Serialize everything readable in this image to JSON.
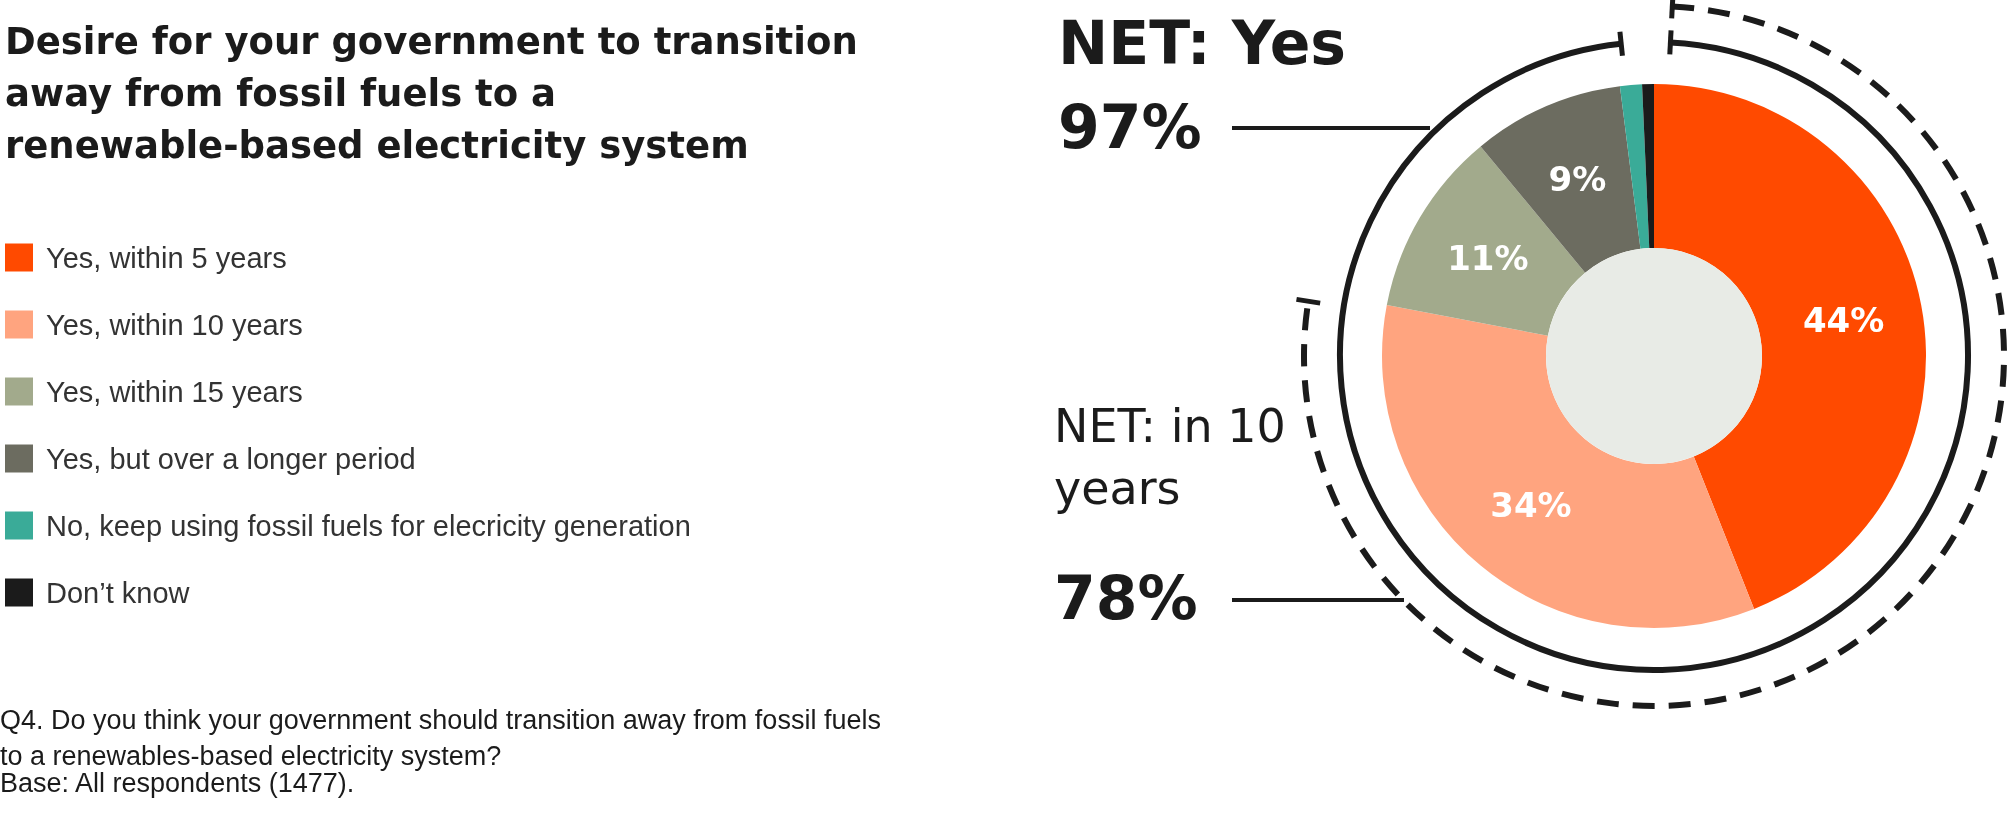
{
  "chart_data": {
    "type": "donut",
    "title": "Desire for your government to transition away from fossil fuels to a renewable-based electricity system",
    "categories": [
      "Yes, within 5 years",
      "Yes, within 10 years",
      "Yes, within 15 years",
      "Yes, but over a longer period",
      "No, keep using fossil fuels for elecricity generation",
      "Don’t know"
    ],
    "values": [
      44,
      34,
      11,
      9,
      1.3,
      0.7
    ],
    "colors": [
      "#ff4a00",
      "#ffa47f",
      "#a2aa8c",
      "#6c6c60",
      "#3aab98",
      "#1b1b1b"
    ],
    "value_labels": [
      "44%",
      "34%",
      "11%",
      "9%",
      null,
      null
    ],
    "legend": "left",
    "annotations": [
      "NET: Yes",
      "97%",
      "NET: in 10 years",
      "78%",
      "Q4. Do you think your government should transition away from fossil fuels to a renewables-based electricity system?",
      "Base: All respondents (1477)."
    ]
  }
}
